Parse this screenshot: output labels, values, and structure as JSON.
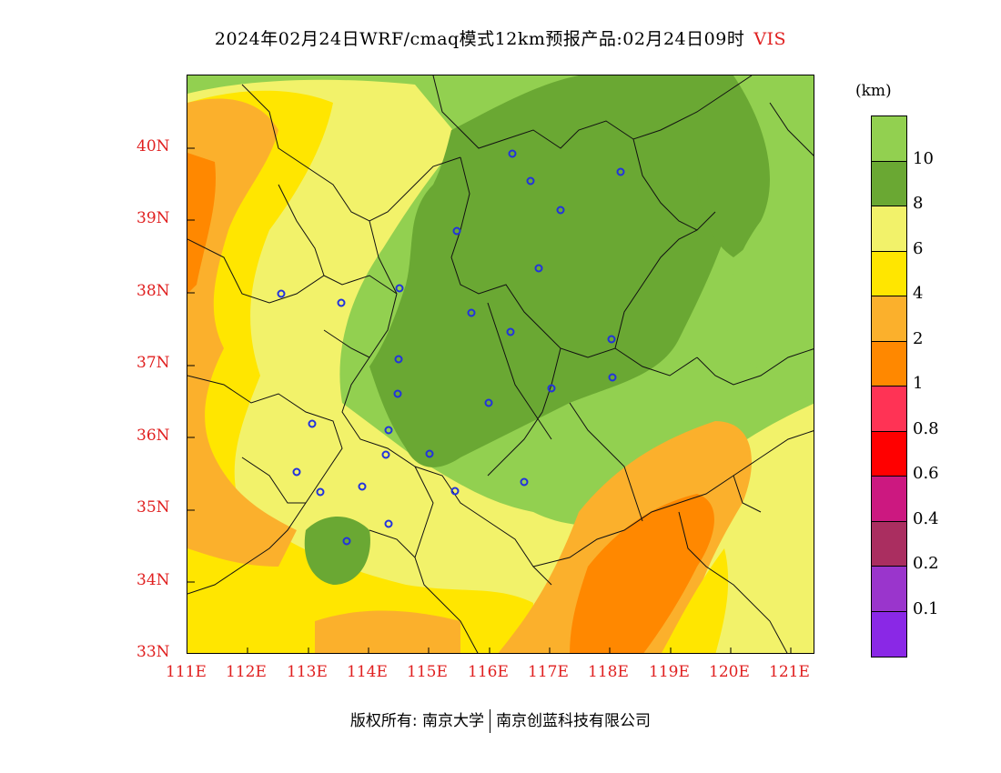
{
  "title": {
    "main": "2024年02月24日WRF/cmaq模式12km预报产品:02月24日09时",
    "variable": "VIS"
  },
  "colors": {
    "title_variable": "#e02020",
    "axis_labels": "#e02020",
    "boundaries": "#111111",
    "cities": "#2233dd"
  },
  "map": {
    "lat_labels": [
      "40N",
      "39N",
      "38N",
      "37N",
      "36N",
      "35N",
      "34N",
      "33N"
    ],
    "lon_labels": [
      "111E",
      "112E",
      "113E",
      "114E",
      "115E",
      "116E",
      "117E",
      "118E",
      "119E",
      "120E",
      "121E"
    ]
  },
  "legend": {
    "unit": "(km)",
    "labels": [
      "10",
      "8",
      "6",
      "4",
      "2",
      "1",
      "0.8",
      "0.6",
      "0.4",
      "0.2",
      "0.1"
    ],
    "colors": [
      "#92d050",
      "#6aa833",
      "#f2f26a",
      "#ffe600",
      "#fbb02c",
      "#ff8800",
      "#ff3355",
      "#ff0000",
      "#cc1880",
      "#aa2e60",
      "#9a35cc",
      "#8a28e6"
    ]
  },
  "footer": {
    "copyright": "版权所有: 南京大学",
    "company": "南京创蓝科技有限公司"
  }
}
